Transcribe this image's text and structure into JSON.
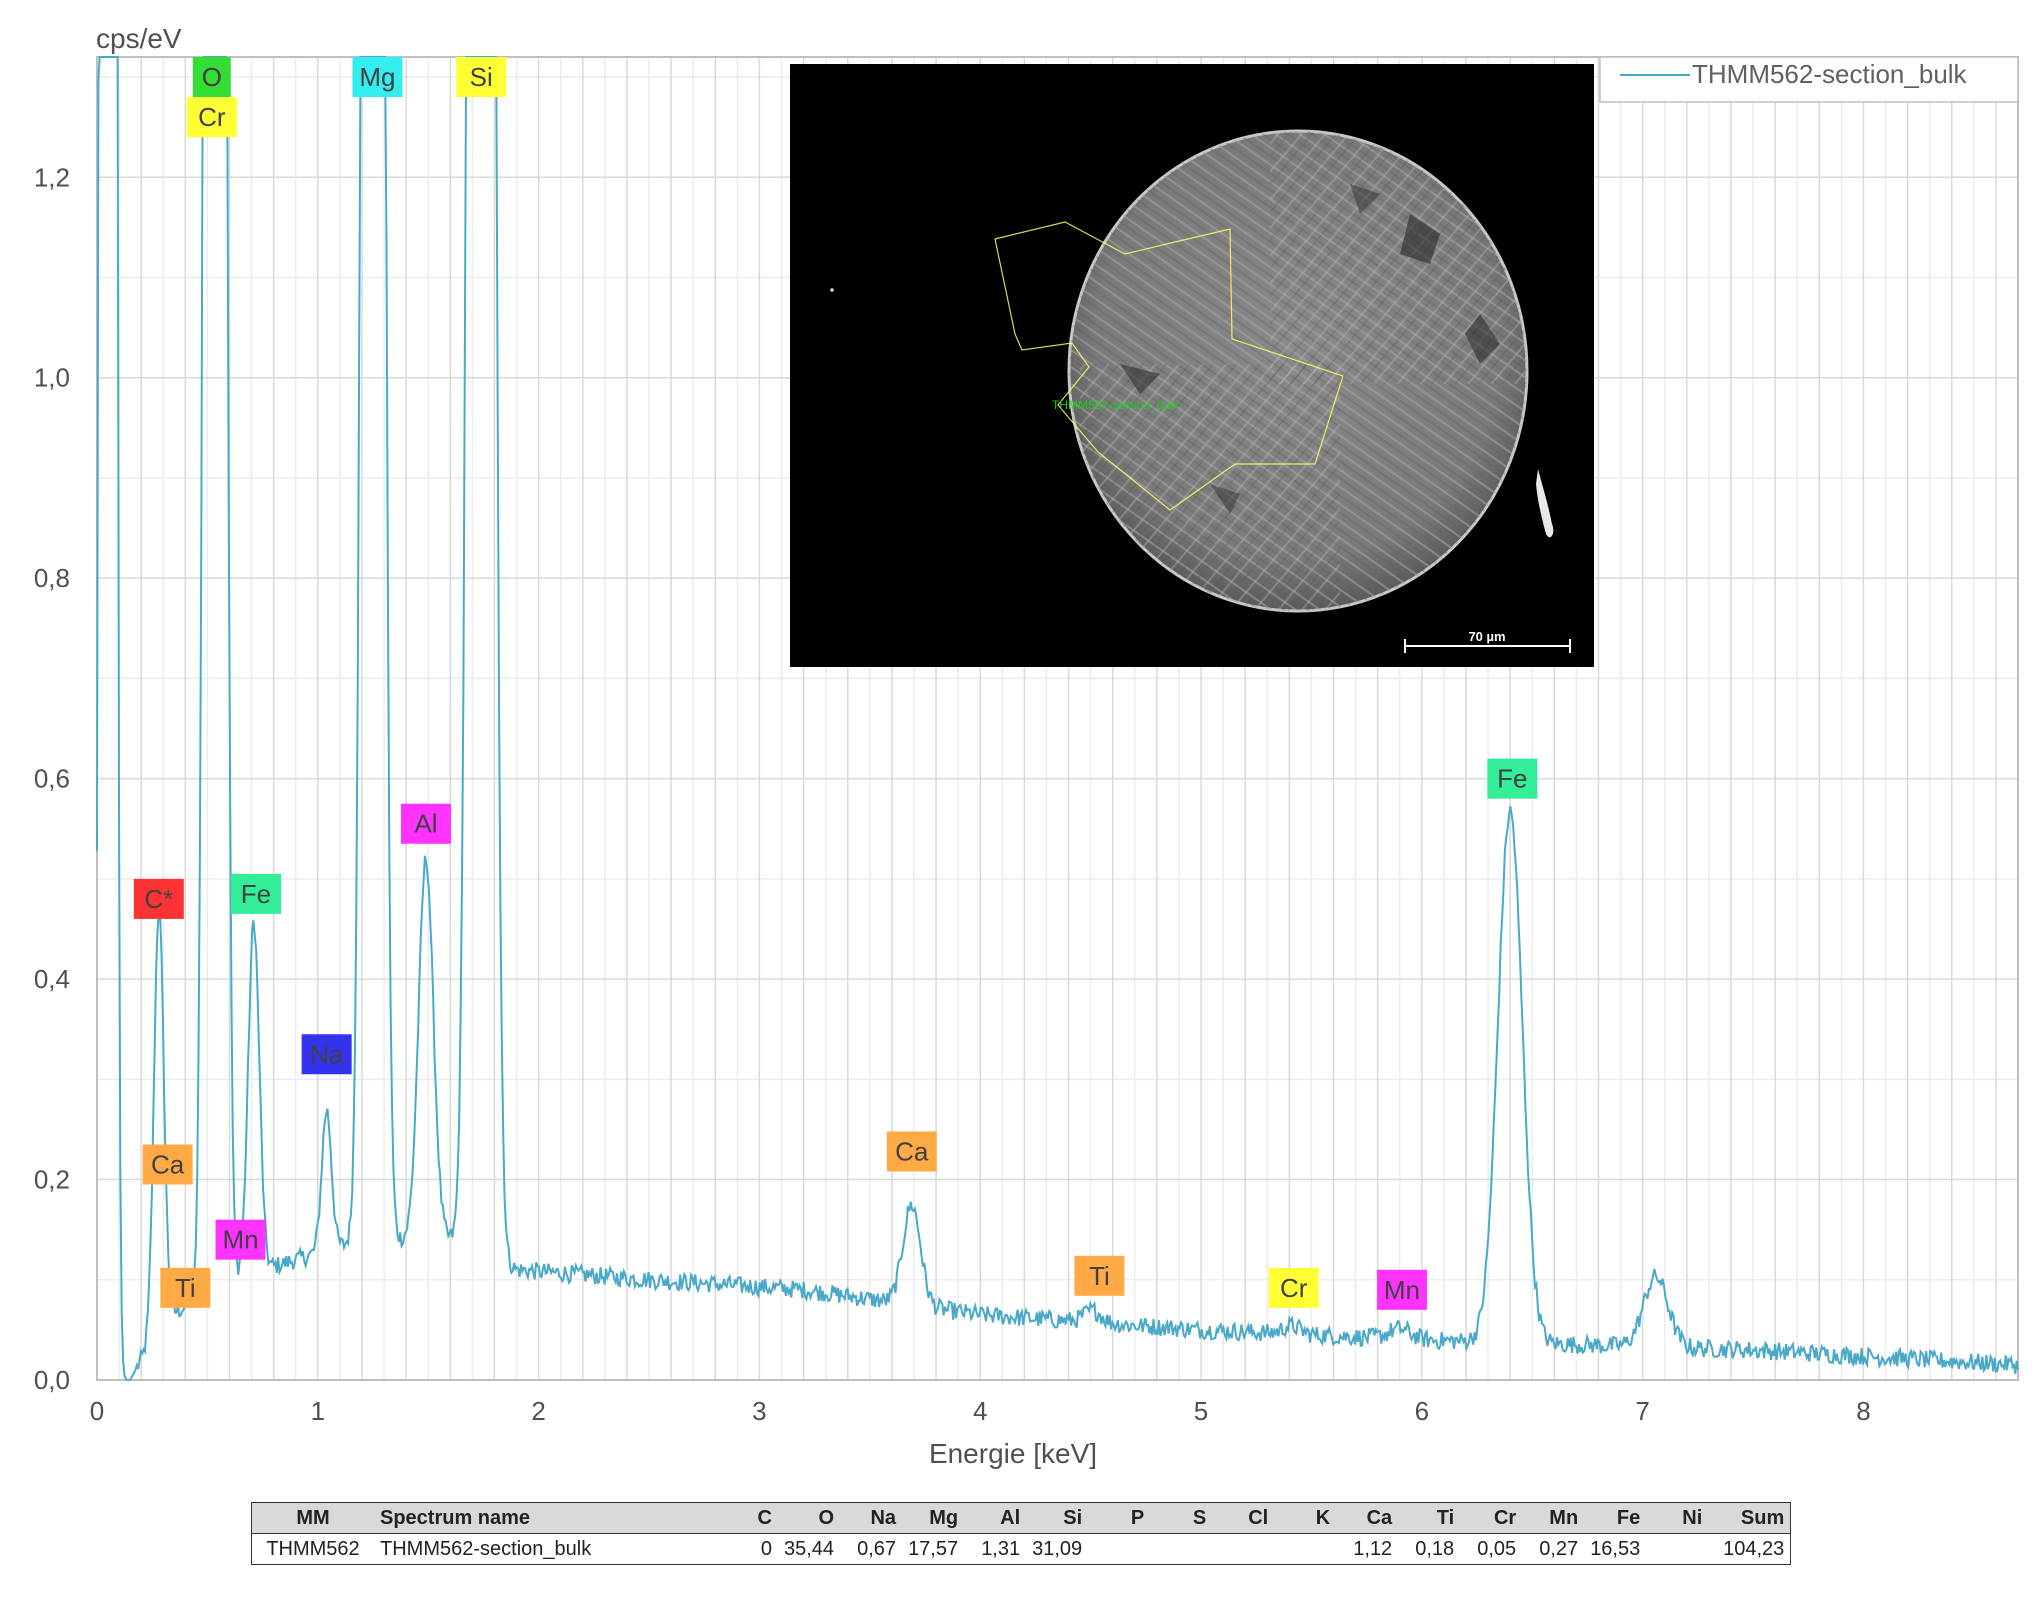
{
  "chart_data": {
    "type": "line",
    "ylabel": "cps/eV",
    "xlabel": "Energie [keV]",
    "xlim": [
      0,
      8.7
    ],
    "ylim": [
      0,
      1.32
    ],
    "xticks": [
      "0",
      "1",
      "2",
      "3",
      "4",
      "5",
      "6",
      "7",
      "8"
    ],
    "yticks": [
      "0,0",
      "0,2",
      "0,4",
      "0,6",
      "0,8",
      "1,0",
      "1,2"
    ],
    "grid": true,
    "legend_position": "top-right",
    "series": [
      {
        "name": "THMM562-section_bulk",
        "color": "#4aa8c8",
        "peaks": [
          {
            "center": 0.05,
            "height": 25.0,
            "width": 0.018
          },
          {
            "center": 0.28,
            "height": 0.42,
            "width": 0.022
          },
          {
            "center": 0.52,
            "height": 5.5,
            "width": 0.024
          },
          {
            "center": 0.57,
            "height": 1.8,
            "width": 0.02
          },
          {
            "center": 0.71,
            "height": 0.35,
            "width": 0.025
          },
          {
            "center": 1.04,
            "height": 0.14,
            "width": 0.022
          },
          {
            "center": 1.25,
            "height": 8.0,
            "width": 0.03
          },
          {
            "center": 1.49,
            "height": 0.38,
            "width": 0.033
          },
          {
            "center": 1.74,
            "height": 9.5,
            "width": 0.034
          },
          {
            "center": 3.69,
            "height": 0.1,
            "width": 0.04
          },
          {
            "center": 4.51,
            "height": 0.012,
            "width": 0.04
          },
          {
            "center": 5.41,
            "height": 0.008,
            "width": 0.04
          },
          {
            "center": 5.9,
            "height": 0.01,
            "width": 0.05
          },
          {
            "center": 6.4,
            "height": 0.53,
            "width": 0.055
          },
          {
            "center": 7.06,
            "height": 0.07,
            "width": 0.055
          }
        ],
        "background": [
          [
            0.15,
            0.0
          ],
          [
            0.3,
            0.06
          ],
          [
            0.6,
            0.1
          ],
          [
            0.9,
            0.12
          ],
          [
            1.2,
            0.14
          ],
          [
            1.6,
            0.14
          ],
          [
            1.9,
            0.11
          ],
          [
            2.5,
            0.1
          ],
          [
            3.2,
            0.09
          ],
          [
            4.0,
            0.065
          ],
          [
            5.0,
            0.05
          ],
          [
            6.0,
            0.04
          ],
          [
            7.5,
            0.03
          ],
          [
            8.7,
            0.015
          ]
        ]
      }
    ],
    "peak_labels": [
      {
        "label": "O",
        "x": 0.52,
        "y": 1.3,
        "color": "#33dd33"
      },
      {
        "label": "Cr",
        "x": 0.52,
        "y": 1.26,
        "color": "#ffff33"
      },
      {
        "label": "Mg",
        "x": 1.27,
        "y": 1.3,
        "color": "#33eeee"
      },
      {
        "label": "Si",
        "x": 1.74,
        "y": 1.3,
        "color": "#ffff33"
      },
      {
        "label": "C*",
        "x": 0.28,
        "y": 0.48,
        "color": "#ff3333"
      },
      {
        "label": "Fe",
        "x": 0.72,
        "y": 0.485,
        "color": "#33ee99"
      },
      {
        "label": "Al",
        "x": 1.49,
        "y": 0.555,
        "color": "#ff33ff"
      },
      {
        "label": "Na",
        "x": 1.04,
        "y": 0.325,
        "color": "#3333ee"
      },
      {
        "label": "Ca",
        "x": 0.32,
        "y": 0.215,
        "color": "#ffaa44"
      },
      {
        "label": "Mn",
        "x": 0.65,
        "y": 0.14,
        "color": "#ff33ff"
      },
      {
        "label": "Ti",
        "x": 0.4,
        "y": 0.092,
        "color": "#ffaa44"
      },
      {
        "label": "Ca",
        "x": 3.69,
        "y": 0.228,
        "color": "#ffaa44"
      },
      {
        "label": "Ti",
        "x": 4.54,
        "y": 0.104,
        "color": "#ffaa44"
      },
      {
        "label": "Cr",
        "x": 5.42,
        "y": 0.092,
        "color": "#ffff33"
      },
      {
        "label": "Mn",
        "x": 5.91,
        "y": 0.09,
        "color": "#ff33ff"
      },
      {
        "label": "Fe",
        "x": 6.41,
        "y": 0.6,
        "color": "#33ee99"
      }
    ]
  },
  "inset": {
    "scale_bar_label": "70 µm",
    "region_label": "THMM562-section_bulk"
  },
  "results_table": {
    "headers": [
      "MM",
      "Spectrum name",
      "C",
      "O",
      "Na",
      "Mg",
      "Al",
      "Si",
      "P",
      "S",
      "Cl",
      "K",
      "Ca",
      "Ti",
      "Cr",
      "Mn",
      "Fe",
      "Ni",
      "Sum"
    ],
    "rows": [
      [
        "THMM562",
        "THMM562-section_bulk",
        "0",
        "35,44",
        "0,67",
        "17,57",
        "1,31",
        "31,09",
        "",
        "",
        "",
        "",
        "1,12",
        "0,18",
        "0,05",
        "0,27",
        "16,53",
        "",
        "104,23"
      ]
    ]
  }
}
